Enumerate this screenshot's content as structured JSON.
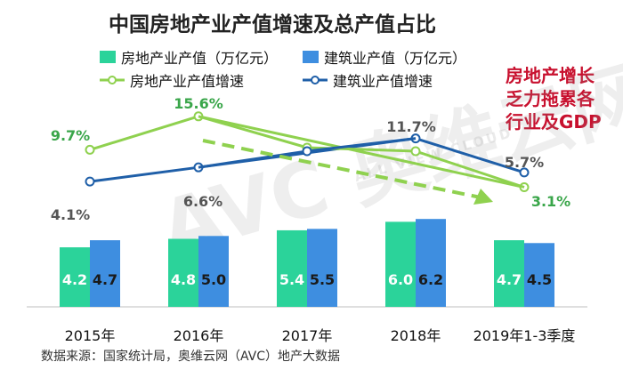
{
  "chart_data": {
    "type": "bar",
    "title": "中国房地产业产值增速及总产值占比",
    "categories": [
      "2015年",
      "2016年",
      "2017年",
      "2018年",
      "2019年1-3季度"
    ],
    "series": [
      {
        "name": "房地产业产值（万亿元）",
        "kind": "bar",
        "axis": "left",
        "color": "#2bd39a",
        "values": [
          4.2,
          4.8,
          5.4,
          6.0,
          4.7
        ],
        "labels": [
          "4.2",
          "4.8",
          "5.4",
          "6.0",
          "4.7"
        ]
      },
      {
        "name": "建筑业产值（万亿元）",
        "kind": "bar",
        "axis": "left",
        "color": "#3e8ee0",
        "values": [
          4.7,
          5.0,
          5.5,
          6.2,
          4.5
        ],
        "labels": [
          "4.7",
          "5.0",
          "5.5",
          "6.2",
          "4.5"
        ]
      },
      {
        "name": "房地产业产值增速",
        "kind": "line",
        "axis": "right",
        "color": "#8fd14f",
        "values": [
          9.7,
          15.6,
          null,
          null,
          3.1
        ],
        "labels": [
          "9.7%",
          "15.6%",
          "",
          "",
          "3.1%"
        ]
      },
      {
        "name": "建筑业产值增速",
        "kind": "line",
        "axis": "right",
        "color": "#1f5fa8",
        "values": [
          4.1,
          6.6,
          null,
          11.7,
          5.7
        ],
        "labels": [
          "4.1%",
          "6.6%",
          "",
          "11.7%",
          "5.7%"
        ]
      }
    ],
    "bar_ylim": [
      0,
      16
    ],
    "line_ylim": [
      -18,
      22
    ],
    "grid": false,
    "legend_position": "top-left"
  },
  "callout": "房地产增长乏力拖累各行业及GDP",
  "source": "数据来源：国家统计局，奥维云网（AVC）地产大数据",
  "watermark": "AVC 奥维云网",
  "watermark_sub": "ALL VIEW CLOUD",
  "colors": {
    "label_green": "#3aa64a",
    "label_gray": "#555555",
    "trend_arrow": "#8fd14f",
    "callout_red": "#c8102e"
  }
}
